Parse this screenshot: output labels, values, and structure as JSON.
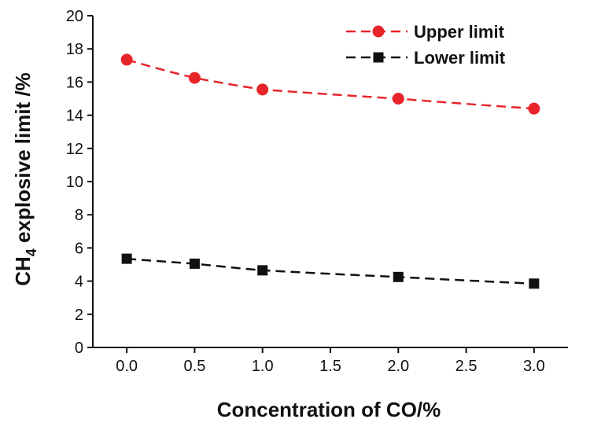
{
  "chart_data": {
    "type": "line",
    "title": "",
    "xlabel": "Concentration of CO/%",
    "ylabel_main": "CH",
    "ylabel_sub": "4",
    "ylabel_rest": " explosive limit /%",
    "x": [
      0.0,
      0.5,
      1.0,
      2.0,
      3.0
    ],
    "xlim": [
      -0.25,
      3.25
    ],
    "ylim": [
      0,
      20
    ],
    "x_ticks": [
      "0.0",
      "0.5",
      "1.0",
      "1.5",
      "2.0",
      "2.5",
      "3.0"
    ],
    "y_ticks": [
      "0",
      "2",
      "4",
      "6",
      "8",
      "10",
      "12",
      "14",
      "16",
      "18",
      "20"
    ],
    "grid": false,
    "legend_position": "top-right",
    "series": [
      {
        "name": "Upper limit",
        "marker": "circle",
        "color": "#e8242b",
        "values": [
          17.35,
          16.25,
          15.55,
          15.0,
          14.4
        ]
      },
      {
        "name": "Lower limit",
        "marker": "square",
        "color": "#111111",
        "values": [
          5.35,
          5.05,
          4.65,
          4.25,
          3.85
        ]
      }
    ]
  }
}
